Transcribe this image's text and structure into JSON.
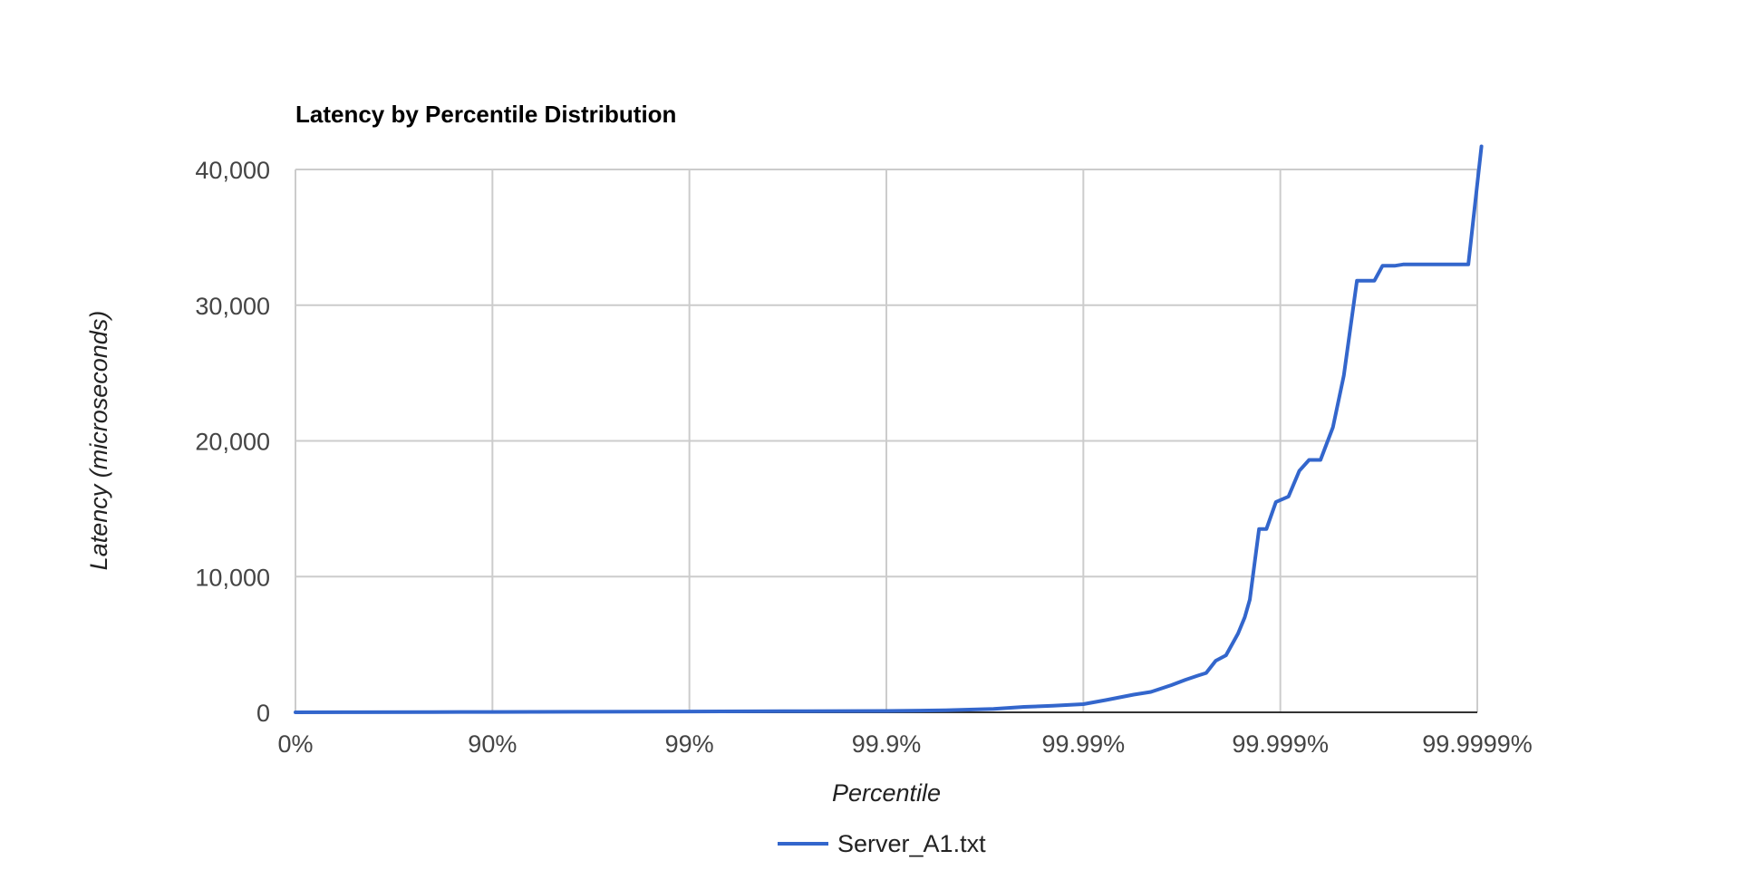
{
  "chart_data": {
    "type": "line",
    "title": "Latency by Percentile Distribution",
    "xlabel": "Percentile",
    "ylabel": "Latency (microseconds)",
    "x_scale": "percentile-log",
    "x_ticks": [
      {
        "value": 1,
        "label": "0%"
      },
      {
        "value": 10,
        "label": "90%"
      },
      {
        "value": 100,
        "label": "99%"
      },
      {
        "value": 1000,
        "label": "99.9%"
      },
      {
        "value": 10000,
        "label": "99.99%"
      },
      {
        "value": 100000,
        "label": "99.999%"
      },
      {
        "value": 1000000,
        "label": "99.9999%"
      }
    ],
    "y_ticks": [
      {
        "value": 0,
        "label": "0"
      },
      {
        "value": 10000,
        "label": "10,000"
      },
      {
        "value": 20000,
        "label": "20,000"
      },
      {
        "value": 30000,
        "label": "30,000"
      },
      {
        "value": 40000,
        "label": "40,000"
      }
    ],
    "ylim": [
      0,
      40000
    ],
    "grid": true,
    "legend_position": "bottom",
    "series": [
      {
        "name": "Server_A1.txt",
        "color": "#3366cc",
        "x": [
          1,
          2,
          5,
          10,
          30,
          100,
          300,
          1000,
          2000,
          3500,
          5000,
          7000,
          10000,
          13000,
          18000,
          22000,
          28000,
          33000,
          38000,
          42000,
          47000,
          53000,
          61000,
          66000,
          70000,
          78000,
          85000,
          95000,
          110000,
          125000,
          140000,
          160000,
          185000,
          210000,
          245000,
          280000,
          300000,
          330000,
          380000,
          420000,
          500000,
          600000,
          900000,
          1050000
        ],
        "y": [
          0,
          10,
          20,
          30,
          40,
          60,
          80,
          100,
          150,
          250,
          400,
          480,
          600,
          900,
          1300,
          1500,
          2000,
          2400,
          2700,
          2900,
          3800,
          4200,
          5800,
          7000,
          8300,
          13500,
          13500,
          15500,
          15900,
          17800,
          18600,
          18600,
          21000,
          24800,
          31800,
          31800,
          31800,
          32900,
          32900,
          33000,
          33000,
          33000,
          33000,
          41700
        ]
      }
    ]
  }
}
